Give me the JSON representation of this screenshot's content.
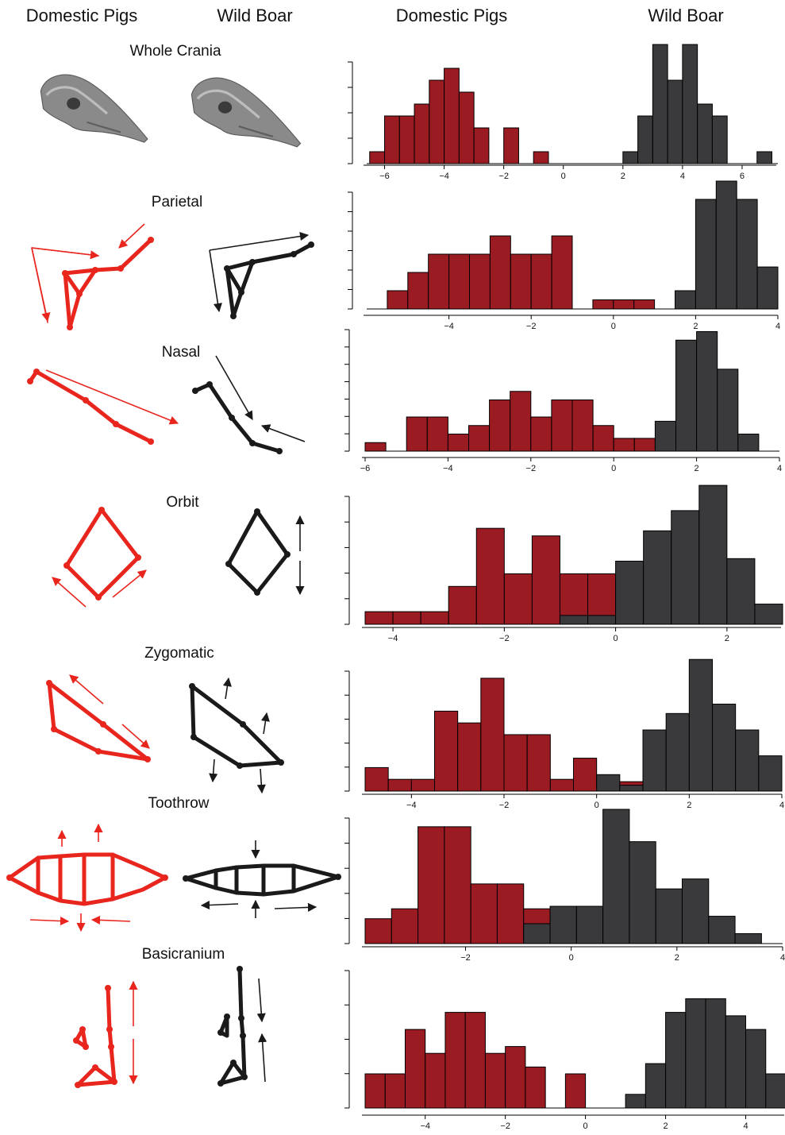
{
  "headers": {
    "left_domestic": "Domestic Pigs",
    "left_wild": "Wild Boar",
    "right_domestic": "Domestic Pigs",
    "right_wild": "Wild Boar"
  },
  "rows": [
    {
      "label": "Whole Crania",
      "kind": "skull"
    },
    {
      "label": "Parietal",
      "kind": "parietal"
    },
    {
      "label": "Nasal",
      "kind": "nasal"
    },
    {
      "label": "Orbit",
      "kind": "orbit"
    },
    {
      "label": "Zygomatic",
      "kind": "zygomatic"
    },
    {
      "label": "Toothrow",
      "kind": "toothrow"
    },
    {
      "label": "Basicranium",
      "kind": "basicranium"
    }
  ],
  "colors": {
    "domestic": "#9b1b22",
    "wild": "#3a3a3c",
    "domestic_wireframe": "#e8261e",
    "wild_wireframe": "#1a1a1a",
    "skull": "#8a8a8a"
  },
  "chart_data": [
    {
      "type": "bar",
      "panel": "Whole Crania",
      "x_ticks": [
        -6,
        -4,
        -2,
        0,
        2,
        4,
        6
      ],
      "xlim": [
        -6.6,
        7.2
      ],
      "series": [
        {
          "name": "Domestic Pigs",
          "bins": [
            [
              -6.5,
              -6.0,
              1
            ],
            [
              -6.0,
              -5.5,
              4
            ],
            [
              -5.5,
              -5.0,
              4
            ],
            [
              -5.0,
              -4.5,
              5
            ],
            [
              -4.5,
              -4.0,
              7
            ],
            [
              -4.0,
              -3.5,
              8
            ],
            [
              -3.5,
              -3.0,
              6
            ],
            [
              -3.0,
              -2.5,
              3
            ],
            [
              -2.0,
              -1.5,
              3
            ],
            [
              -1.0,
              -0.5,
              1
            ]
          ]
        },
        {
          "name": "Wild Boar",
          "bins": [
            [
              2.0,
              2.5,
              1
            ],
            [
              2.5,
              3.0,
              4
            ],
            [
              3.0,
              3.5,
              10
            ],
            [
              3.5,
              4.0,
              7
            ],
            [
              4.0,
              4.5,
              10
            ],
            [
              4.5,
              5.0,
              5
            ],
            [
              5.0,
              5.5,
              4
            ],
            [
              6.5,
              7.0,
              1
            ]
          ]
        }
      ]
    },
    {
      "type": "bar",
      "panel": "Parietal",
      "x_ticks": [
        -4,
        -2,
        0,
        2,
        4
      ],
      "xlim": [
        -6.0,
        4.0
      ],
      "series": [
        {
          "name": "Domestic Pigs",
          "bins": [
            [
              -5.5,
              -5.0,
              1
            ],
            [
              -5.0,
              -4.5,
              2
            ],
            [
              -4.5,
              -4.0,
              3
            ],
            [
              -4.0,
              -3.5,
              3
            ],
            [
              -3.5,
              -3.0,
              3
            ],
            [
              -3.0,
              -2.5,
              4
            ],
            [
              -2.5,
              -2.0,
              3
            ],
            [
              -2.0,
              -1.5,
              3
            ],
            [
              -1.5,
              -1.0,
              4
            ],
            [
              -0.5,
              0.0,
              0.5
            ],
            [
              0.0,
              0.5,
              0.5
            ],
            [
              0.5,
              1.0,
              0.5
            ]
          ]
        },
        {
          "name": "Wild Boar",
          "bins": [
            [
              1.5,
              2.0,
              1
            ],
            [
              2.0,
              2.5,
              6
            ],
            [
              2.5,
              3.0,
              7
            ],
            [
              3.0,
              3.5,
              6
            ],
            [
              3.5,
              4.0,
              2.3
            ]
          ]
        }
      ]
    },
    {
      "type": "bar",
      "panel": "Nasal",
      "x_ticks": [
        -6,
        -4,
        -2,
        0,
        2,
        4
      ],
      "xlim": [
        -6.0,
        4.0
      ],
      "series": [
        {
          "name": "Domestic Pigs",
          "bins": [
            [
              -6.0,
              -5.5,
              0.5
            ],
            [
              -5.0,
              -4.5,
              2
            ],
            [
              -4.5,
              -4.0,
              2
            ],
            [
              -4.0,
              -3.5,
              1
            ],
            [
              -3.5,
              -3.0,
              1.5
            ],
            [
              -3.0,
              -2.5,
              3
            ],
            [
              -2.5,
              -2.0,
              3.5
            ],
            [
              -2.0,
              -1.5,
              2
            ],
            [
              -1.5,
              -1.0,
              3
            ],
            [
              -1.0,
              -0.5,
              3
            ],
            [
              -0.5,
              0.0,
              1.5
            ],
            [
              0.0,
              0.5,
              0.75
            ],
            [
              0.5,
              1.0,
              0.75
            ]
          ]
        },
        {
          "name": "Wild Boar",
          "bins": [
            [
              1.0,
              1.5,
              1.75
            ],
            [
              1.5,
              2.0,
              6.5
            ],
            [
              2.0,
              2.5,
              7.0
            ],
            [
              2.5,
              3.0,
              4.8
            ],
            [
              3.0,
              3.5,
              1
            ]
          ]
        }
      ]
    },
    {
      "type": "bar",
      "panel": "Orbit",
      "x_ticks": [
        -4,
        -2,
        0,
        2
      ],
      "xlim": [
        -4.5,
        3.0
      ],
      "series": [
        {
          "name": "Domestic Pigs",
          "bins": [
            [
              -4.5,
              -4.0,
              0.5
            ],
            [
              -4.0,
              -3.5,
              0.5
            ],
            [
              -3.5,
              -3.0,
              0.5
            ],
            [
              -3.0,
              -2.5,
              1.5
            ],
            [
              -2.5,
              -2.0,
              3.8
            ],
            [
              -2.0,
              -1.5,
              2
            ],
            [
              -1.5,
              -1.0,
              3.5
            ],
            [
              -1.0,
              -0.5,
              2
            ],
            [
              -0.5,
              0.0,
              2
            ],
            [
              0.0,
              0.5,
              2
            ],
            [
              0.5,
              1.0,
              0.5
            ],
            [
              1.0,
              1.5,
              1
            ]
          ]
        },
        {
          "name": "Wild Boar",
          "bins": [
            [
              -1.0,
              -0.5,
              0.35
            ],
            [
              -0.5,
              0.0,
              0.35
            ],
            [
              0.0,
              0.5,
              2.5
            ],
            [
              0.5,
              1.0,
              3.7
            ],
            [
              1.0,
              1.5,
              4.5
            ],
            [
              1.5,
              2.0,
              5.5
            ],
            [
              2.0,
              2.5,
              2.6
            ],
            [
              2.5,
              3.0,
              0.8
            ]
          ]
        }
      ]
    },
    {
      "type": "bar",
      "panel": "Zygomatic",
      "x_ticks": [
        -4,
        -2,
        0,
        2,
        4
      ],
      "xlim": [
        -5.0,
        4.0
      ],
      "series": [
        {
          "name": "Domestic Pigs",
          "bins": [
            [
              -5.0,
              -4.5,
              1
            ],
            [
              -4.5,
              -4.0,
              0.5
            ],
            [
              -4.0,
              -3.5,
              0.5
            ],
            [
              -3.5,
              -3.0,
              3.4
            ],
            [
              -3.0,
              -2.5,
              2.9
            ],
            [
              -2.5,
              -2.0,
              4.8
            ],
            [
              -2.0,
              -1.5,
              2.4
            ],
            [
              -1.5,
              -1.0,
              2.4
            ],
            [
              -1.0,
              -0.5,
              0.5
            ],
            [
              -0.5,
              0.0,
              1.4
            ],
            [
              0.5,
              1.0,
              0.4
            ]
          ]
        },
        {
          "name": "Wild Boar",
          "bins": [
            [
              0.0,
              0.5,
              0.7
            ],
            [
              0.5,
              1.0,
              0.25
            ],
            [
              1.0,
              1.5,
              2.6
            ],
            [
              1.5,
              2.0,
              3.3
            ],
            [
              2.0,
              2.5,
              5.6
            ],
            [
              2.5,
              3.0,
              3.7
            ],
            [
              3.0,
              3.5,
              2.6
            ],
            [
              3.5,
              4.0,
              1.5
            ]
          ]
        }
      ]
    },
    {
      "type": "bar",
      "panel": "Toothrow",
      "x_ticks": [
        -2,
        0,
        2,
        4
      ],
      "xlim": [
        -3.9,
        4.0
      ],
      "series": [
        {
          "name": "Domestic Pigs",
          "bins": [
            [
              -3.9,
              -3.4,
              1
            ],
            [
              -3.4,
              -2.9,
              1.4
            ],
            [
              -2.9,
              -2.4,
              4.7
            ],
            [
              -2.4,
              -1.9,
              4.7
            ],
            [
              -1.9,
              -1.4,
              2.4
            ],
            [
              -1.4,
              -0.9,
              2.4
            ],
            [
              -0.9,
              -0.4,
              1.4
            ],
            [
              -0.4,
              0.1,
              1
            ],
            [
              0.1,
              0.6,
              0.5
            ]
          ]
        },
        {
          "name": "Wild Boar",
          "bins": [
            [
              -0.9,
              -0.4,
              0.8
            ],
            [
              -0.4,
              0.1,
              1.5
            ],
            [
              0.1,
              0.6,
              1.5
            ],
            [
              0.6,
              1.1,
              5.4
            ],
            [
              1.1,
              1.6,
              4.1
            ],
            [
              1.6,
              2.1,
              2.2
            ],
            [
              2.1,
              2.6,
              2.6
            ],
            [
              2.6,
              3.1,
              1.1
            ],
            [
              3.1,
              3.6,
              0.4
            ]
          ]
        }
      ]
    },
    {
      "type": "bar",
      "panel": "Basicranium",
      "x_ticks": [
        -4,
        -2,
        0,
        2,
        4
      ],
      "xlim": [
        -5.5,
        5.0
      ],
      "series": [
        {
          "name": "Domestic Pigs",
          "bins": [
            [
              -5.5,
              -5.0,
              1
            ],
            [
              -5.0,
              -4.5,
              1
            ],
            [
              -4.5,
              -4.0,
              2.3
            ],
            [
              -4.0,
              -3.5,
              1.6
            ],
            [
              -3.5,
              -3.0,
              2.8
            ],
            [
              -3.0,
              -2.5,
              2.8
            ],
            [
              -2.5,
              -2.0,
              1.6
            ],
            [
              -2.0,
              -1.5,
              1.8
            ],
            [
              -1.5,
              -1.0,
              1.2
            ],
            [
              -0.5,
              0.0,
              1
            ]
          ]
        },
        {
          "name": "Wild Boar",
          "bins": [
            [
              1.0,
              1.5,
              0.4
            ],
            [
              1.5,
              2.0,
              1.3
            ],
            [
              2.0,
              2.5,
              2.8
            ],
            [
              2.5,
              3.0,
              3.2
            ],
            [
              3.0,
              3.5,
              3.2
            ],
            [
              3.5,
              4.0,
              2.7
            ],
            [
              4.0,
              4.5,
              2.3
            ],
            [
              4.5,
              5.0,
              1
            ]
          ]
        }
      ]
    }
  ]
}
